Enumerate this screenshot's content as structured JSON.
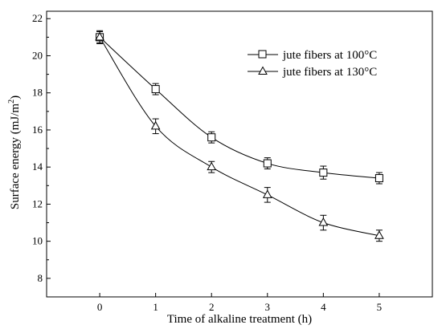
{
  "chart_data": {
    "type": "line",
    "xlabel": "Time of alkaline treatment (h)",
    "ylabel_main": "Surface energy (mJ/m",
    "ylabel_sup": "2",
    "ylabel_end": ")",
    "xlim": [
      -0.95,
      5.95
    ],
    "ylim": [
      7,
      22.4
    ],
    "xticks": [
      "0",
      "1",
      "2",
      "3",
      "4",
      "5"
    ],
    "yticks": [
      "8",
      "10",
      "12",
      "14",
      "16",
      "18",
      "20",
      "22"
    ],
    "legend_position": "top-right",
    "series": [
      {
        "name": "jute fibers at 100°C",
        "marker": "square",
        "x": [
          0,
          1,
          2,
          3,
          4,
          5
        ],
        "y": [
          21.0,
          18.2,
          15.6,
          14.2,
          13.7,
          13.4
        ],
        "err": [
          0.3,
          0.3,
          0.3,
          0.3,
          0.35,
          0.3
        ]
      },
      {
        "name": "jute fibers at 130°C",
        "marker": "triangle",
        "x": [
          0,
          1,
          2,
          3,
          4,
          5
        ],
        "y": [
          21.0,
          16.2,
          14.0,
          12.5,
          11.0,
          10.3
        ],
        "err": [
          0.35,
          0.4,
          0.3,
          0.4,
          0.4,
          0.3
        ]
      }
    ]
  }
}
